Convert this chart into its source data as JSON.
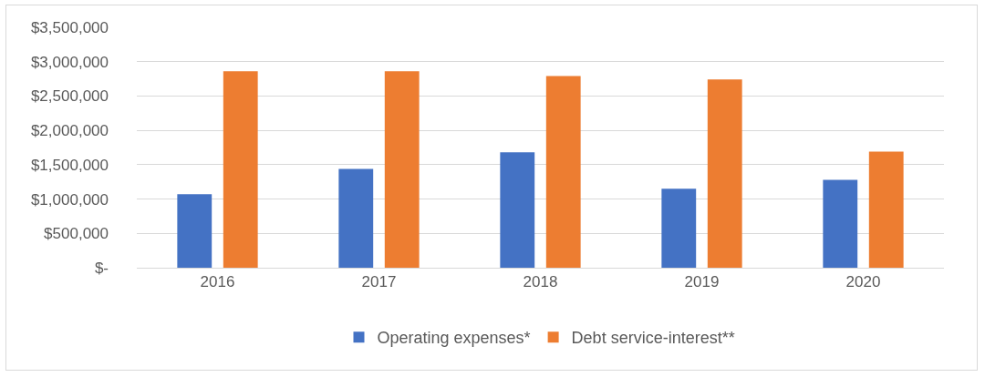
{
  "chart_data": {
    "type": "bar",
    "categories": [
      "2016",
      "2017",
      "2018",
      "2019",
      "2020"
    ],
    "series": [
      {
        "name": "Operating expenses*",
        "color": "#4472c4",
        "values": [
          1070000,
          1440000,
          1680000,
          1150000,
          1280000
        ]
      },
      {
        "name": "Debt service-interest**",
        "color": "#ed7d31",
        "values": [
          2860000,
          2860000,
          2790000,
          2740000,
          1690000
        ]
      }
    ],
    "ylim": [
      0,
      3500000
    ],
    "yticks": [
      {
        "value": 0,
        "label": "$-"
      },
      {
        "value": 500000,
        "label": "$500,000"
      },
      {
        "value": 1000000,
        "label": "$1,000,000"
      },
      {
        "value": 1500000,
        "label": "$1,500,000"
      },
      {
        "value": 2000000,
        "label": "$2,000,000"
      },
      {
        "value": 2500000,
        "label": "$2,500,000"
      },
      {
        "value": 3000000,
        "label": "$3,000,000"
      },
      {
        "value": 3500000,
        "label": "$3,500,000"
      }
    ],
    "grid": "y",
    "legend": "bottom"
  }
}
